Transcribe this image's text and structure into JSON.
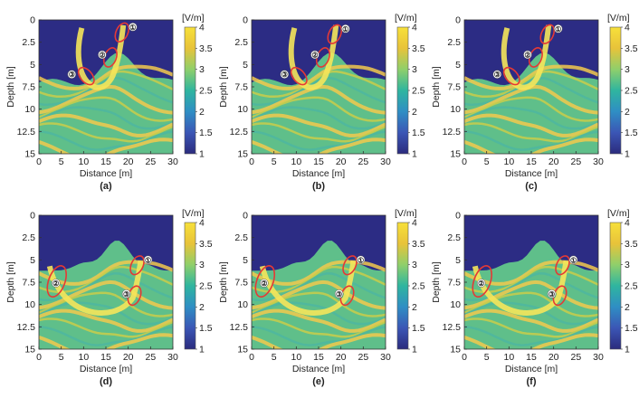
{
  "figure": {
    "colorscale": {
      "unit": "[V/m]",
      "ticks": [
        "4",
        "3.5",
        "3",
        "2.5",
        "2",
        "1.5",
        "1"
      ],
      "stops": [
        "#f7e03a",
        "#e8c33a",
        "#8fcf6b",
        "#2fb59f",
        "#2f8ec4",
        "#3b56b5",
        "#2b2b7d"
      ]
    },
    "axes": {
      "xlabel": "Distance [m]",
      "ylabel": "Depth [m]",
      "x_ticks": [
        "0",
        "5",
        "10",
        "15",
        "20",
        "25",
        "30"
      ],
      "y_ticks": [
        "0",
        "2.5",
        "5",
        "7.5",
        "10",
        "12.5",
        "15"
      ]
    },
    "colors": {
      "sky": "#2c2c84",
      "ground": "#5fbf8a",
      "ground_alt": "#c9cc4a",
      "band": "#f2c94c",
      "wave": "#f5e65a",
      "marker": "#e53935"
    },
    "panels": [
      {
        "caption": "(a)",
        "markers": [
          {
            "label": "①",
            "x": 18.6,
            "y": 1.4
          },
          {
            "label": "②",
            "x": 16.0,
            "y": 4.2
          },
          {
            "label": "③",
            "x": 10.6,
            "y": 6.3
          }
        ]
      },
      {
        "caption": "(b)",
        "markers": [
          {
            "label": "①",
            "x": 18.6,
            "y": 1.6
          },
          {
            "label": "②",
            "x": 16.0,
            "y": 4.2
          },
          {
            "label": "③",
            "x": 10.6,
            "y": 6.3
          }
        ]
      },
      {
        "caption": "(c)",
        "markers": [
          {
            "label": "①",
            "x": 18.6,
            "y": 1.6
          },
          {
            "label": "②",
            "x": 16.0,
            "y": 4.2
          },
          {
            "label": "③",
            "x": 10.6,
            "y": 6.3
          }
        ]
      },
      {
        "caption": "(d)",
        "markers": [
          {
            "label": "①",
            "x": 22.0,
            "y": 5.6
          },
          {
            "label": "②",
            "x": 4.0,
            "y": 7.4
          },
          {
            "label": "③",
            "x": 21.4,
            "y": 9.0
          }
        ]
      },
      {
        "caption": "(e)",
        "markers": [
          {
            "label": "①",
            "x": 22.0,
            "y": 5.6
          },
          {
            "label": "②",
            "x": 3.0,
            "y": 7.4
          },
          {
            "label": "③",
            "x": 21.4,
            "y": 9.0
          }
        ]
      },
      {
        "caption": "(f)",
        "markers": [
          {
            "label": "①",
            "x": 22.0,
            "y": 5.6
          },
          {
            "label": "②",
            "x": 4.0,
            "y": 7.4
          },
          {
            "label": "③",
            "x": 21.4,
            "y": 9.0
          }
        ]
      }
    ]
  }
}
